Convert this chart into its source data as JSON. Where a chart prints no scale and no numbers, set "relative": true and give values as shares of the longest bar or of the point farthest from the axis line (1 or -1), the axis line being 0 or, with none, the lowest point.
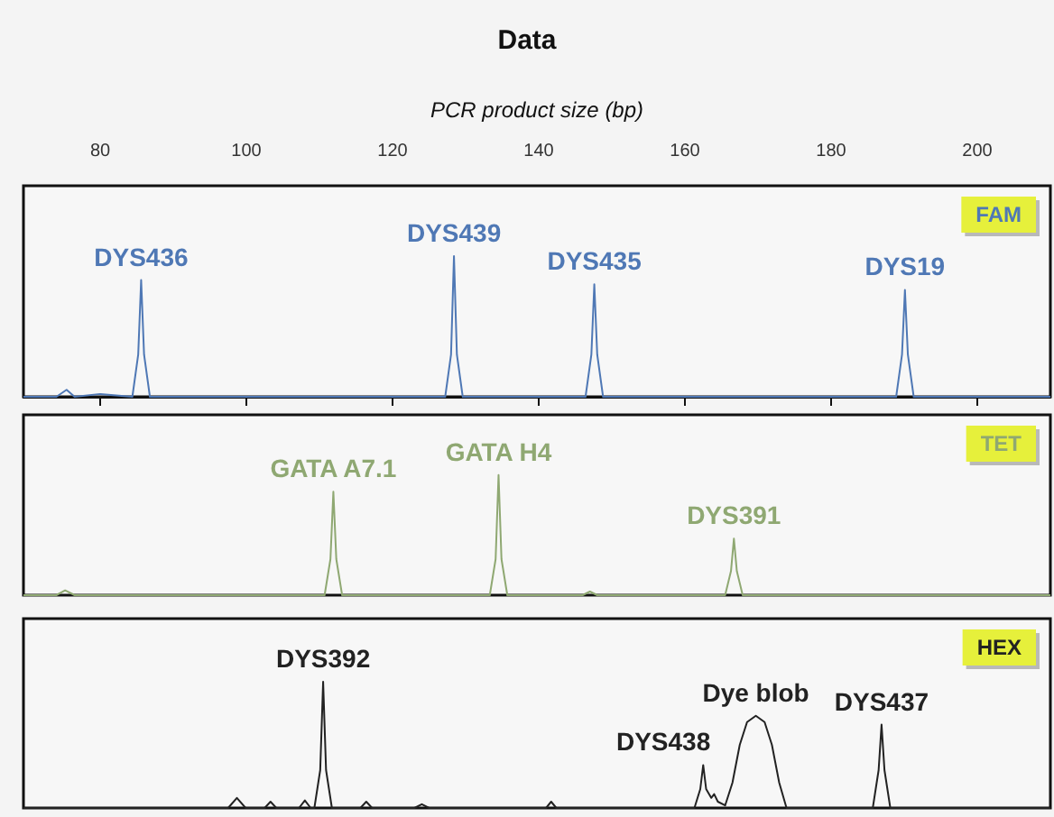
{
  "chart_data": [
    {
      "type": "line",
      "title": "Data",
      "xlabel": "PCR product size (bp)",
      "relative": true,
      "marker": "none",
      "tick_labels": "x",
      "xlim": [
        69.5,
        210
      ],
      "xticks": [
        80,
        100,
        120,
        140,
        160,
        180,
        200
      ],
      "series": [
        {
          "name": "FAM",
          "color": "#4f78b5",
          "x": [
            69.5,
            74,
            75.4,
            76.5,
            80,
            84.4,
            85.2,
            85.6,
            86,
            86.8,
            127.2,
            128,
            128.4,
            128.8,
            129.6,
            146.4,
            147.2,
            147.6,
            148,
            148.8,
            188.9,
            189.7,
            190.1,
            190.5,
            191.3,
            210
          ],
          "values": [
            0,
            0,
            0.05,
            0,
            0.02,
            0,
            0.3,
            0.83,
            0.3,
            0,
            0,
            0.3,
            1,
            0.3,
            0,
            0,
            0.3,
            0.8,
            0.3,
            0,
            0,
            0.3,
            0.76,
            0.3,
            0,
            0
          ]
        }
      ],
      "annotations": [
        {
          "text": "DYS436",
          "x": 85.6,
          "y": 0.83
        },
        {
          "text": "DYS439",
          "x": 128.4,
          "y": 1
        },
        {
          "text": "DYS435",
          "x": 147.6,
          "y": 0.8
        },
        {
          "text": "DYS19",
          "x": 190.1,
          "y": 0.76
        }
      ]
    },
    {
      "type": "line",
      "relative": true,
      "marker": "none",
      "tick_labels": false,
      "xlim": [
        69.5,
        210
      ],
      "series": [
        {
          "name": "TET",
          "color": "#8fa872",
          "x": [
            69.5,
            74,
            75.2,
            76.5,
            110.7,
            111.5,
            111.9,
            112.3,
            113.1,
            133.3,
            134.1,
            134.5,
            134.9,
            135.7,
            146,
            147,
            148,
            165.5,
            166.3,
            166.7,
            167.1,
            167.9,
            210
          ],
          "values": [
            0,
            0,
            0.04,
            0,
            0,
            0.3,
            0.86,
            0.3,
            0,
            0,
            0.3,
            1,
            0.3,
            0,
            0,
            0.03,
            0,
            0,
            0.2,
            0.47,
            0.2,
            0,
            0
          ]
        }
      ],
      "annotations": [
        {
          "text": "GATA A7.1",
          "x": 111.9,
          "y": 0.86
        },
        {
          "text": "GATA H4",
          "x": 134.5,
          "y": 1
        },
        {
          "text": "DYS391",
          "x": 166.7,
          "y": 0.47
        }
      ]
    },
    {
      "type": "line",
      "relative": true,
      "marker": "none",
      "tick_labels": false,
      "xlim": [
        69.5,
        210
      ],
      "series": [
        {
          "name": "HEX",
          "color": "#222222",
          "x": [
            69.5,
            97.5,
            98.7,
            99.9,
            102.5,
            103.3,
            104.1,
            107.2,
            108,
            108.8,
            109.3,
            110.1,
            110.5,
            110.9,
            111.7,
            115.6,
            116.4,
            117.2,
            123,
            124,
            125,
            141,
            141.7,
            142.4,
            161.3,
            162.1,
            162.5,
            162.9,
            163.6,
            164,
            164.5,
            165.5,
            166.5,
            167.5,
            168.5,
            169.7,
            170.9,
            171.9,
            172.9,
            173.9,
            185.7,
            186.5,
            186.9,
            187.3,
            188.1,
            210
          ],
          "values": [
            0,
            0,
            0.08,
            0,
            0,
            0.05,
            0,
            0,
            0.06,
            0,
            0,
            0.3,
            1,
            0.3,
            0,
            0,
            0.05,
            0,
            0,
            0.03,
            0,
            0,
            0.05,
            0,
            0,
            0.15,
            0.34,
            0.15,
            0.08,
            0.11,
            0.05,
            0.02,
            0.2,
            0.5,
            0.68,
            0.73,
            0.68,
            0.5,
            0.2,
            0,
            0,
            0.3,
            0.66,
            0.3,
            0,
            0
          ]
        }
      ],
      "annotations": [
        {
          "text": "DYS392",
          "x": 110.5,
          "y": 1
        },
        {
          "text": "DYS438",
          "x": 162.5,
          "y": 0.34
        },
        {
          "text": "Dye blob",
          "x": 169.7,
          "y": 0.73
        },
        {
          "text": "DYS437",
          "x": 186.9,
          "y": 0.66
        }
      ]
    }
  ]
}
